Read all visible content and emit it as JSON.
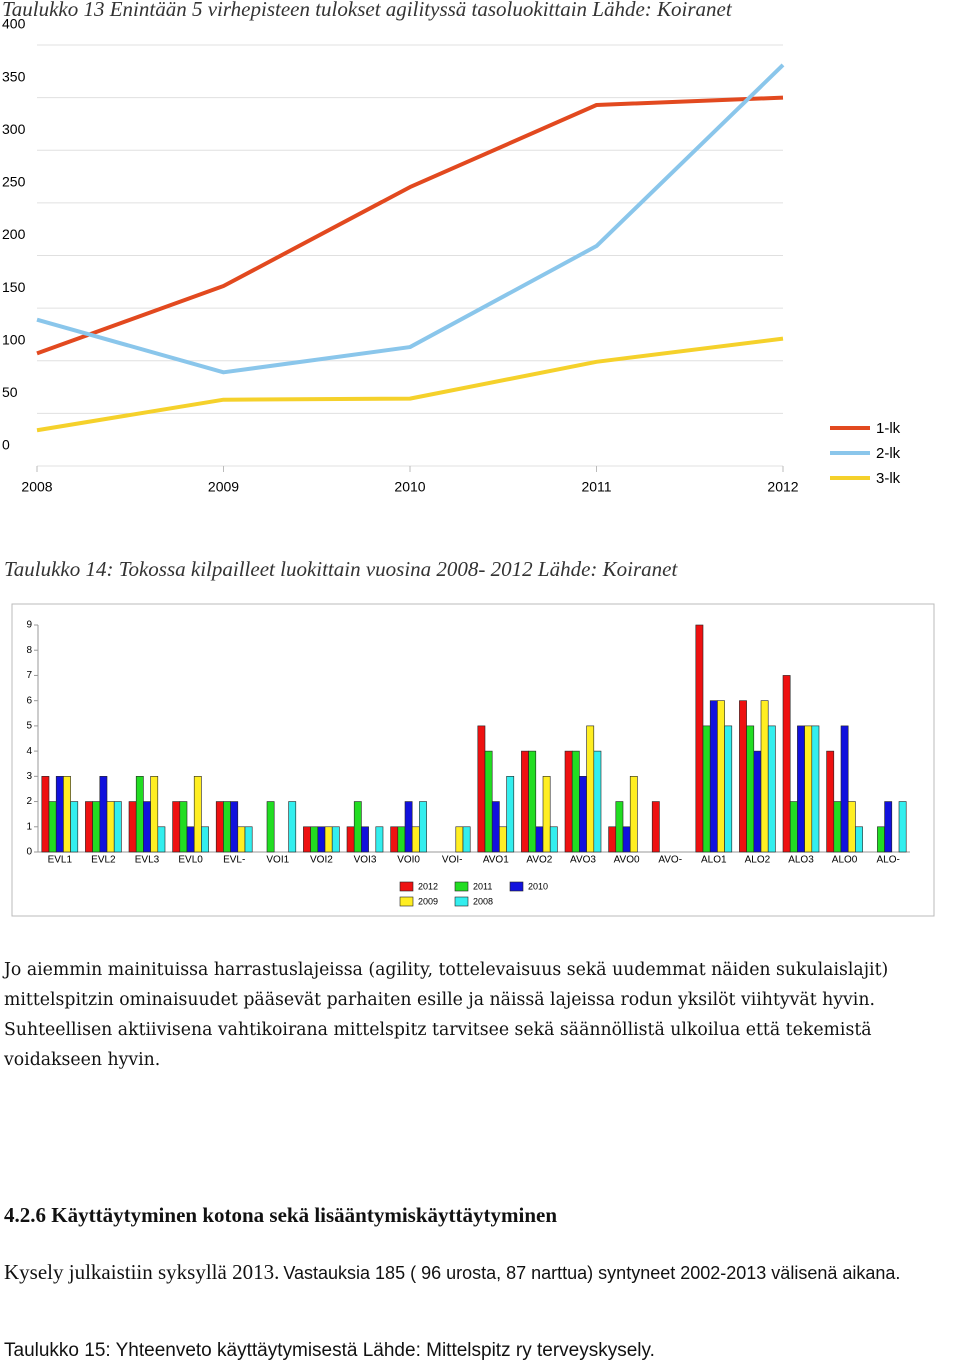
{
  "chart_data": [
    {
      "type": "line",
      "title": "Taulukko 13 Enintään 5 virhepisteen tulokset agilityssä tasoluokittain Lähde: Koiranet",
      "categories": [
        "2008",
        "2009",
        "2010",
        "2011",
        "2012"
      ],
      "series": [
        {
          "name": "1-lk",
          "color": "#e2491f",
          "values": [
            107,
            171,
            265,
            343,
            350
          ]
        },
        {
          "name": "2-lk",
          "color": "#8ac6eb",
          "values": [
            139,
            89,
            113,
            209,
            381
          ]
        },
        {
          "name": "3-lk",
          "color": "#f5d12b",
          "values": [
            34,
            63,
            64,
            99,
            121
          ]
        }
      ],
      "ylim": [
        0,
        400
      ],
      "yticks": [
        0,
        50,
        100,
        150,
        200,
        250,
        300,
        350,
        400
      ],
      "grid": true,
      "legend": "right"
    },
    {
      "type": "bar",
      "title": "Taulukko 14: Tokossa kilpailleet luokittain vuosina 2008- 2012 Lähde: Koiranet",
      "categories": [
        "EVL1",
        "EVL2",
        "EVL3",
        "EVL0",
        "EVL-",
        "VOI1",
        "VOI2",
        "VOI3",
        "VOI0",
        "VOI-",
        "AVO1",
        "AVO2",
        "AVO3",
        "AVO0",
        "AVO-",
        "ALO1",
        "ALO2",
        "ALO3",
        "ALO0",
        "ALO-"
      ],
      "series": [
        {
          "name": "2012",
          "color": "#ee1111",
          "values": [
            3,
            2,
            2,
            2,
            2,
            0,
            1,
            1,
            1,
            0,
            5,
            4,
            4,
            1,
            2,
            9,
            6,
            7,
            4,
            0
          ]
        },
        {
          "name": "2011",
          "color": "#22dd22",
          "values": [
            2,
            2,
            3,
            2,
            2,
            2,
            1,
            2,
            1,
            0,
            4,
            4,
            4,
            2,
            0,
            5,
            5,
            2,
            2,
            1
          ]
        },
        {
          "name": "2010",
          "color": "#1111dd",
          "values": [
            3,
            3,
            2,
            1,
            2,
            0,
            1,
            1,
            2,
            0,
            2,
            1,
            3,
            1,
            0,
            6,
            4,
            5,
            5,
            2
          ]
        },
        {
          "name": "2009",
          "color": "#ffee22",
          "values": [
            3,
            2,
            3,
            3,
            1,
            0,
            1,
            0,
            1,
            1,
            1,
            3,
            5,
            3,
            0,
            6,
            6,
            5,
            2,
            0
          ]
        },
        {
          "name": "2008",
          "color": "#33eeee",
          "values": [
            2,
            2,
            1,
            1,
            1,
            2,
            1,
            1,
            2,
            1,
            3,
            1,
            4,
            0,
            0,
            5,
            5,
            5,
            1,
            2
          ]
        }
      ],
      "ylim": [
        0,
        9
      ],
      "yticks": [
        0,
        1,
        2,
        3,
        4,
        5,
        6,
        7,
        8,
        9
      ],
      "grid": false,
      "legend": "bottom"
    }
  ],
  "paragraph": "Jo aiemmin mainituissa harrastuslajeissa (agility, tottelevaisuus sekä uudemmat näiden sukulaislajit) mittelspitzin ominaisuudet pääsevät parhaiten esille ja näissä lajeissa rodun yksilöt viihtyvät hyvin. Suhteellisen aktiivisena vahtikoirana mittelspitz tarvitsee sekä säännöllistä ulkoilua että tekemistä voidakseen hyvin.",
  "heading": "4.2.6 Käyttäytyminen kotona sekä lisääntymiskäyttäytyminen",
  "survey": {
    "text1": "Kysely julkaistiin syksyllä 2013.",
    "text2": "Vastauksia 185 ( 96 urosta, 87 narttua) syntyneet 2002-2013 välisenä aikana."
  },
  "table_caption": "Taulukko 15: Yhteenveto käyttäytymisestä Lähde: Mittelspitz ry  terveyskysely."
}
